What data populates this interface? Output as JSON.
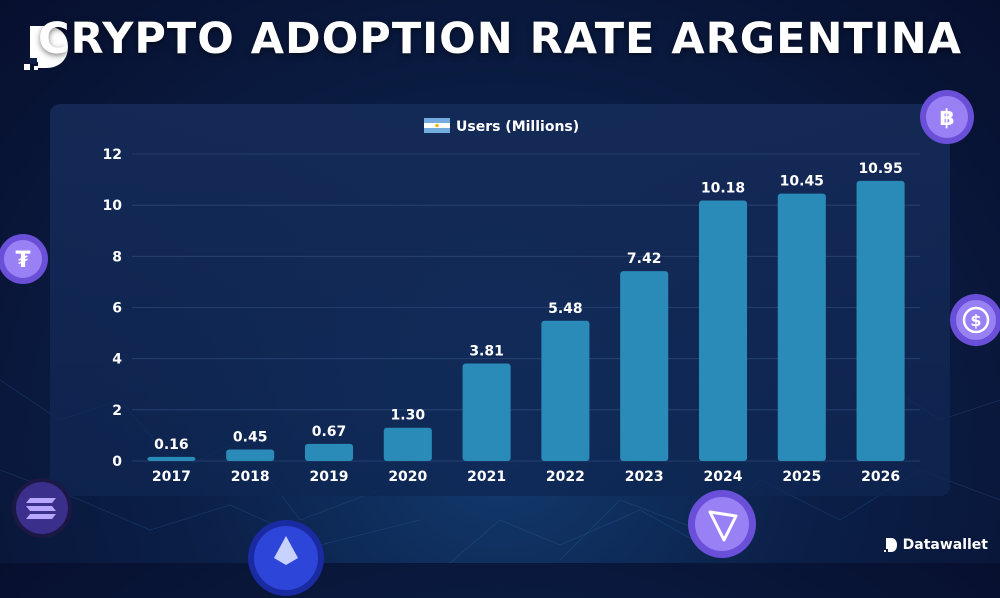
{
  "header": {
    "title": "CRYPTO ADOPTION RATE ARGENTINA"
  },
  "branding": {
    "name": "Datawallet",
    "logo_icon": "datawallet-d-logo-icon"
  },
  "decorations": {
    "coins": [
      "bitcoin-coin-icon",
      "tether-coin-icon",
      "usdc-coin-icon",
      "solana-coin-icon",
      "ethereum-coin-icon",
      "tron-coin-icon"
    ],
    "coin_color": "#8b6cf0"
  },
  "chart_data": {
    "type": "bar",
    "legend": [
      {
        "label": "Users (Millions)",
        "icon": "argentina-flag-icon"
      }
    ],
    "categories": [
      "2017",
      "2018",
      "2019",
      "2020",
      "2021",
      "2022",
      "2023",
      "2024",
      "2025",
      "2026"
    ],
    "series": [
      {
        "name": "Users (Millions)",
        "values": [
          0.16,
          0.45,
          0.67,
          1.3,
          3.81,
          5.48,
          7.42,
          10.18,
          10.45,
          10.95
        ],
        "labels": [
          "0.16",
          "0.45",
          "0.67",
          "1.30",
          "3.81",
          "5.48",
          "7.42",
          "10.18",
          "10.45",
          "10.95"
        ],
        "color": "#2a8ab8"
      }
    ],
    "ylim": [
      0,
      12
    ],
    "yticks": [
      "0",
      "2",
      "4",
      "6",
      "8",
      "10",
      "12"
    ],
    "grid": true,
    "legend_position": "top-center"
  }
}
